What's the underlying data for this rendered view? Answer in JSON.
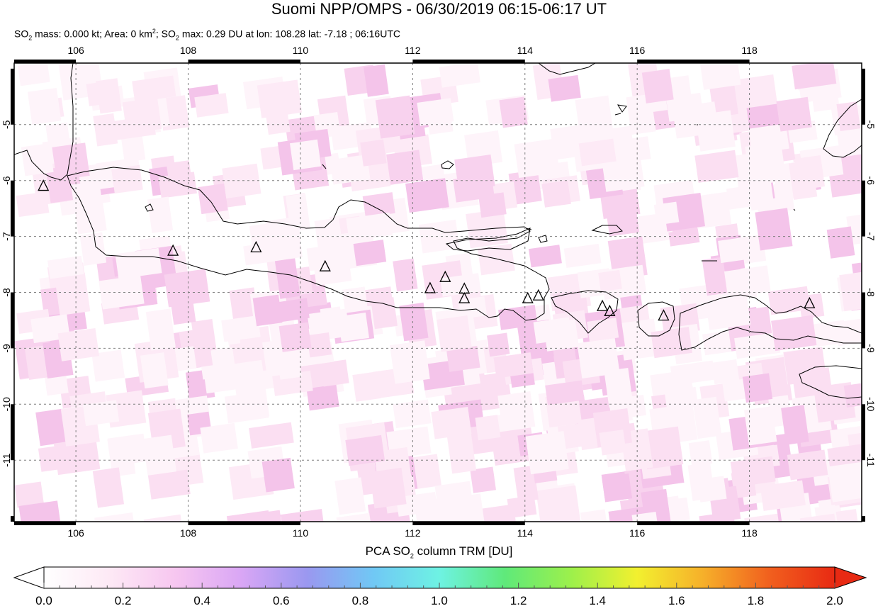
{
  "title": "Suomi NPP/OMPS - 06/30/2019 06:15-06:17 UT",
  "subtitle": {
    "p1": "SO",
    "p1_sub": "2",
    "p2": " mass: 0.000 kt; Area: 0 km",
    "p2_sup": "2",
    "p3": "; SO",
    "p3_sub": "2",
    "p4": " max: 0.29 DU at lon: 108.28 lat: -7.18 ; 06:16UTC"
  },
  "map": {
    "lon_range": [
      104.9,
      120.0
    ],
    "lat_range": [
      -12.1,
      -3.9
    ],
    "lon_ticks": [
      "106",
      "108",
      "110",
      "112",
      "114",
      "116",
      "118"
    ],
    "lat_ticks": [
      "-5",
      "-6",
      "-7",
      "-8",
      "-9",
      "-10",
      "-11"
    ],
    "volcanoes": [
      {
        "lon": 105.42,
        "lat": -6.1
      },
      {
        "lon": 107.73,
        "lat": -7.26
      },
      {
        "lon": 109.21,
        "lat": -7.2
      },
      {
        "lon": 110.44,
        "lat": -7.54
      },
      {
        "lon": 112.31,
        "lat": -7.93
      },
      {
        "lon": 112.58,
        "lat": -7.73
      },
      {
        "lon": 112.92,
        "lat": -7.94
      },
      {
        "lon": 112.92,
        "lat": -8.11
      },
      {
        "lon": 114.05,
        "lat": -8.11
      },
      {
        "lon": 114.24,
        "lat": -8.06
      },
      {
        "lon": 115.38,
        "lat": -8.25
      },
      {
        "lon": 115.51,
        "lat": -8.34
      },
      {
        "lon": 116.47,
        "lat": -8.42
      },
      {
        "lon": 119.07,
        "lat": -8.2
      }
    ]
  },
  "colorbar": {
    "label_pre": "PCA SO",
    "label_sub": "2",
    "label_post": " column TRM [DU]",
    "ticks": [
      "0.0",
      "0.2",
      "0.4",
      "0.6",
      "0.8",
      "1.0",
      "1.2",
      "1.4",
      "1.6",
      "1.8",
      "2.0"
    ],
    "colors": [
      "#ffffff",
      "#fde9f5",
      "#f7c6f0",
      "#d9a6f5",
      "#9a98f0",
      "#70c8f5",
      "#6ef2e3",
      "#5fe97a",
      "#9df04b",
      "#f2f02f",
      "#f6b02a",
      "#f1601e",
      "#e82a13"
    ]
  }
}
